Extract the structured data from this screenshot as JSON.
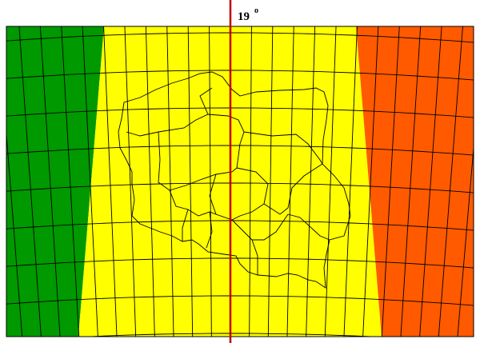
{
  "map": {
    "meridian_label": "19",
    "degree_symbol": "o"
  }
}
